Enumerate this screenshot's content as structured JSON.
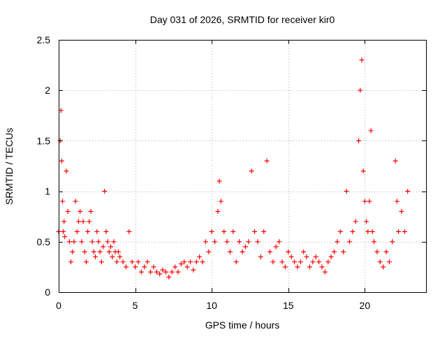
{
  "chart_data": {
    "type": "scatter",
    "title": "Day 031 of 2026, SRMTID for receiver kir0",
    "xlabel": "GPS time / hours",
    "ylabel": "SRMTID / TECUs",
    "xlim": [
      0,
      24
    ],
    "ylim": [
      0,
      2.5
    ],
    "x_ticks": [
      0,
      5,
      10,
      15,
      20
    ],
    "x_tick_labels": [
      "0",
      "5",
      "10",
      "15",
      "20"
    ],
    "y_ticks": [
      0,
      0.5,
      1,
      1.5,
      2,
      2.5
    ],
    "y_tick_labels": [
      "0",
      "0.5",
      "1",
      "1.5",
      "2",
      "2.5"
    ],
    "grid": true,
    "marker": "+",
    "color": "#ff0000",
    "series": [
      {
        "name": "SRMTID",
        "x": [
          0.0,
          0.1,
          0.15,
          0.2,
          0.25,
          0.3,
          0.35,
          0.4,
          0.5,
          0.6,
          0.7,
          0.8,
          0.9,
          1.0,
          1.1,
          1.2,
          1.3,
          1.4,
          1.5,
          1.6,
          1.7,
          1.8,
          1.9,
          2.0,
          2.1,
          2.2,
          2.3,
          2.4,
          2.5,
          2.6,
          2.7,
          2.8,
          2.9,
          3.0,
          3.1,
          3.2,
          3.3,
          3.4,
          3.5,
          3.6,
          3.7,
          3.8,
          3.9,
          4.0,
          4.2,
          4.4,
          4.6,
          4.8,
          5.0,
          5.2,
          5.4,
          5.6,
          5.8,
          6.0,
          6.2,
          6.4,
          6.6,
          6.8,
          7.0,
          7.2,
          7.4,
          7.6,
          7.8,
          8.0,
          8.2,
          8.4,
          8.6,
          8.8,
          9.0,
          9.2,
          9.4,
          9.6,
          9.8,
          10.0,
          10.2,
          10.4,
          10.5,
          10.6,
          10.8,
          11.0,
          11.2,
          11.4,
          11.6,
          11.8,
          12.0,
          12.2,
          12.4,
          12.6,
          12.8,
          13.0,
          13.2,
          13.4,
          13.6,
          13.8,
          14.0,
          14.2,
          14.4,
          14.6,
          14.8,
          15.0,
          15.2,
          15.4,
          15.6,
          15.8,
          16.0,
          16.2,
          16.4,
          16.6,
          16.8,
          17.0,
          17.2,
          17.4,
          17.6,
          17.8,
          18.0,
          18.2,
          18.4,
          18.6,
          18.8,
          19.0,
          19.2,
          19.4,
          19.6,
          19.7,
          19.8,
          19.9,
          20.0,
          20.1,
          20.2,
          20.3,
          20.4,
          20.5,
          20.6,
          20.8,
          21.0,
          21.2,
          21.4,
          21.6,
          21.8,
          22.0,
          22.1,
          22.2,
          22.4,
          22.6,
          22.8
        ],
        "y": [
          0.6,
          1.5,
          1.8,
          1.3,
          0.9,
          0.6,
          0.7,
          0.55,
          1.2,
          0.8,
          0.5,
          0.3,
          0.4,
          0.5,
          0.9,
          0.6,
          0.7,
          0.8,
          0.5,
          0.7,
          0.4,
          0.3,
          0.6,
          0.7,
          0.8,
          0.5,
          0.4,
          0.35,
          0.6,
          0.5,
          0.4,
          0.3,
          0.45,
          1.0,
          0.6,
          0.5,
          0.4,
          0.45,
          0.35,
          0.5,
          0.4,
          0.3,
          0.4,
          0.35,
          0.3,
          0.25,
          0.6,
          0.3,
          0.25,
          0.3,
          0.2,
          0.25,
          0.3,
          0.2,
          0.25,
          0.2,
          0.18,
          0.22,
          0.2,
          0.15,
          0.2,
          0.25,
          0.2,
          0.28,
          0.3,
          0.25,
          0.3,
          0.22,
          0.3,
          0.35,
          0.3,
          0.5,
          0.4,
          0.6,
          0.5,
          0.8,
          1.1,
          0.9,
          0.6,
          0.5,
          0.4,
          0.6,
          0.3,
          0.5,
          0.4,
          0.45,
          0.5,
          1.2,
          0.6,
          0.5,
          0.35,
          0.6,
          1.3,
          0.4,
          0.3,
          0.45,
          0.5,
          0.3,
          0.25,
          0.4,
          0.35,
          0.3,
          0.25,
          0.3,
          0.4,
          0.35,
          0.25,
          0.3,
          0.35,
          0.3,
          0.25,
          0.2,
          0.3,
          0.35,
          0.4,
          0.5,
          0.6,
          0.4,
          1.0,
          0.5,
          0.6,
          0.7,
          1.5,
          2.0,
          2.3,
          1.2,
          0.9,
          0.7,
          0.6,
          0.9,
          1.6,
          0.6,
          0.5,
          0.4,
          0.3,
          0.25,
          0.4,
          0.3,
          0.5,
          1.3,
          0.9,
          0.6,
          0.8,
          0.6,
          1.0
        ]
      }
    ]
  }
}
